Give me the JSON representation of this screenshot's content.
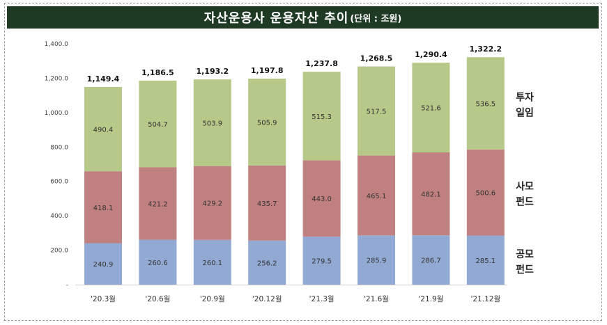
{
  "title": {
    "main": "자산운용사 운용자산 추이",
    "unit": "(단위 : 조원)"
  },
  "chart_data": {
    "type": "bar",
    "stacked": true,
    "categories": [
      "'20.3월",
      "'20.6월",
      "'20.9월",
      "'20.12월",
      "'21.3월",
      "'21.6월",
      "'21.9월",
      "'21.12월"
    ],
    "series": [
      {
        "name": "공모 펀드",
        "name_lines": [
          "공모",
          "펀드"
        ],
        "color": "#92a9d3",
        "values": [
          240.9,
          260.6,
          260.1,
          256.2,
          279.5,
          285.9,
          286.7,
          285.1
        ]
      },
      {
        "name": "사모 펀드",
        "name_lines": [
          "사모",
          "펀드"
        ],
        "color": "#c0807f",
        "values": [
          418.1,
          421.2,
          429.2,
          435.7,
          443.0,
          465.1,
          482.1,
          500.6
        ]
      },
      {
        "name": "투자 일임",
        "name_lines": [
          "투자",
          "일임"
        ],
        "color": "#b6c989",
        "values": [
          490.4,
          504.7,
          503.9,
          505.9,
          515.3,
          517.5,
          521.6,
          536.5
        ]
      }
    ],
    "totals": [
      "1,149.4",
      "1,186.5",
      "1,193.2",
      "1,197.8",
      "1,237.8",
      "1,268.5",
      "1,290.4",
      "1,322.2"
    ],
    "ylim": [
      0,
      1400
    ],
    "yticks": [
      "-",
      "200.0",
      "400.0",
      "600.0",
      "800.0",
      "1,000.0",
      "1,200.0",
      "1,400.0"
    ],
    "grid": false,
    "legend_placement": "right, inline beside stacks"
  }
}
